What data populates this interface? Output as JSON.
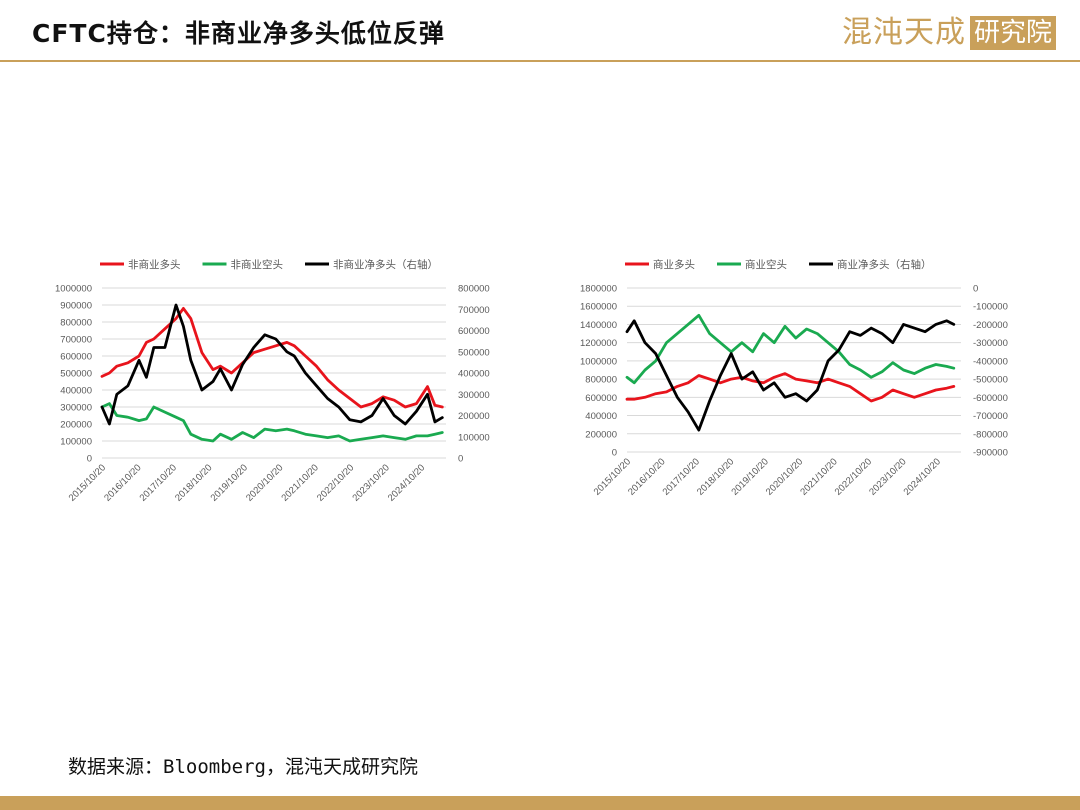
{
  "header": {
    "title": "CFTC持仓：非商业净多头低位反弹",
    "brand_name": "混沌天成",
    "brand_box": "研究院"
  },
  "source_note": "数据来源：Bloomberg，混沌天成研究院",
  "colors": {
    "accent": "#c9a05a",
    "red": "#e8141c",
    "green": "#1aaa50",
    "black": "#000000"
  },
  "chart_data": [
    {
      "type": "line",
      "legend_position": "top",
      "grid": true,
      "x_tick_labels": [
        "2015/10/20",
        "2016/10/20",
        "2017/10/20",
        "2018/10/20",
        "2019/10/20",
        "2020/10/20",
        "2021/10/20",
        "2022/10/20",
        "2023/10/20",
        "2024/10/20"
      ],
      "ylim_left": [
        0,
        1000000
      ],
      "ylim_right": [
        0,
        800000
      ],
      "y_ticks_left": [
        "1000000",
        "900000",
        "800000",
        "700000",
        "600000",
        "500000",
        "400000",
        "300000",
        "200000",
        "100000",
        "0"
      ],
      "y_ticks_right": [
        "800000",
        "700000",
        "600000",
        "500000",
        "400000",
        "300000",
        "200000",
        "100000",
        "0"
      ],
      "series": [
        {
          "name": "非商业多头",
          "axis": "left",
          "color": "#e8141c",
          "x": [
            2015.8,
            2016.0,
            2016.2,
            2016.5,
            2016.8,
            2017.0,
            2017.2,
            2017.5,
            2017.8,
            2018.0,
            2018.2,
            2018.5,
            2018.8,
            2019.0,
            2019.3,
            2019.6,
            2019.9,
            2020.2,
            2020.5,
            2020.8,
            2021.0,
            2021.3,
            2021.6,
            2021.9,
            2022.2,
            2022.5,
            2022.8,
            2023.1,
            2023.4,
            2023.7,
            2024.0,
            2024.3,
            2024.6,
            2024.8,
            2025.0
          ],
          "values": [
            480000,
            500000,
            540000,
            560000,
            600000,
            680000,
            700000,
            760000,
            820000,
            880000,
            820000,
            620000,
            520000,
            540000,
            500000,
            560000,
            620000,
            640000,
            660000,
            680000,
            660000,
            600000,
            540000,
            460000,
            400000,
            350000,
            300000,
            320000,
            360000,
            340000,
            300000,
            320000,
            420000,
            310000,
            300000
          ]
        },
        {
          "name": "非商业空头",
          "axis": "left",
          "color": "#1aaa50",
          "x": [
            2015.8,
            2016.0,
            2016.2,
            2016.5,
            2016.8,
            2017.0,
            2017.2,
            2017.5,
            2017.8,
            2018.0,
            2018.2,
            2018.5,
            2018.8,
            2019.0,
            2019.3,
            2019.6,
            2019.9,
            2020.2,
            2020.5,
            2020.8,
            2021.0,
            2021.3,
            2021.6,
            2021.9,
            2022.2,
            2022.5,
            2022.8,
            2023.1,
            2023.4,
            2023.7,
            2024.0,
            2024.3,
            2024.6,
            2024.8,
            2025.0
          ],
          "values": [
            300000,
            320000,
            250000,
            240000,
            220000,
            230000,
            300000,
            270000,
            240000,
            220000,
            140000,
            110000,
            100000,
            140000,
            110000,
            150000,
            120000,
            170000,
            160000,
            170000,
            160000,
            140000,
            130000,
            120000,
            130000,
            100000,
            110000,
            120000,
            130000,
            120000,
            110000,
            130000,
            130000,
            140000,
            150000
          ]
        },
        {
          "name": "非商业净多头（右轴）",
          "axis": "right",
          "color": "#000000",
          "x": [
            2015.8,
            2016.0,
            2016.2,
            2016.5,
            2016.8,
            2017.0,
            2017.2,
            2017.5,
            2017.8,
            2018.0,
            2018.2,
            2018.5,
            2018.8,
            2019.0,
            2019.3,
            2019.6,
            2019.9,
            2020.2,
            2020.5,
            2020.8,
            2021.0,
            2021.3,
            2021.6,
            2021.9,
            2022.2,
            2022.5,
            2022.8,
            2023.1,
            2023.4,
            2023.7,
            2024.0,
            2024.3,
            2024.6,
            2024.8,
            2025.0
          ],
          "values": [
            240000,
            160000,
            300000,
            340000,
            460000,
            380000,
            520000,
            520000,
            720000,
            620000,
            460000,
            320000,
            360000,
            420000,
            320000,
            440000,
            520000,
            580000,
            560000,
            500000,
            480000,
            400000,
            340000,
            280000,
            240000,
            180000,
            170000,
            200000,
            280000,
            200000,
            160000,
            220000,
            300000,
            170000,
            190000
          ]
        }
      ]
    },
    {
      "type": "line",
      "legend_position": "top",
      "grid": true,
      "x_tick_labels": [
        "2015/10/20",
        "2016/10/20",
        "2017/10/20",
        "2018/10/20",
        "2019/10/20",
        "2020/10/20",
        "2021/10/20",
        "2022/10/20",
        "2023/10/20",
        "2024/10/20"
      ],
      "ylim_left": [
        0,
        1800000
      ],
      "ylim_right": [
        -900000,
        0
      ],
      "y_ticks_left": [
        "1800000",
        "1600000",
        "1400000",
        "1200000",
        "1000000",
        "800000",
        "600000",
        "400000",
        "200000",
        "0"
      ],
      "y_ticks_right": [
        "0",
        "-100000",
        "-200000",
        "-300000",
        "-400000",
        "-500000",
        "-600000",
        "-700000",
        "-800000",
        "-900000"
      ],
      "series": [
        {
          "name": "商业多头",
          "axis": "left",
          "color": "#e8141c",
          "x": [
            2015.8,
            2016.0,
            2016.3,
            2016.6,
            2016.9,
            2017.2,
            2017.5,
            2017.8,
            2018.1,
            2018.4,
            2018.7,
            2019.0,
            2019.3,
            2019.6,
            2019.9,
            2020.2,
            2020.5,
            2020.8,
            2021.1,
            2021.4,
            2021.7,
            2022.0,
            2022.3,
            2022.6,
            2022.9,
            2023.2,
            2023.5,
            2023.8,
            2024.1,
            2024.4,
            2024.7,
            2024.9
          ],
          "values": [
            580000,
            580000,
            600000,
            640000,
            660000,
            720000,
            760000,
            840000,
            800000,
            760000,
            800000,
            820000,
            780000,
            760000,
            820000,
            860000,
            800000,
            780000,
            760000,
            800000,
            760000,
            720000,
            640000,
            560000,
            600000,
            680000,
            640000,
            600000,
            640000,
            680000,
            700000,
            720000
          ]
        },
        {
          "name": "商业空头",
          "axis": "left",
          "color": "#1aaa50",
          "x": [
            2015.8,
            2016.0,
            2016.3,
            2016.6,
            2016.9,
            2017.2,
            2017.5,
            2017.8,
            2018.1,
            2018.4,
            2018.7,
            2019.0,
            2019.3,
            2019.6,
            2019.9,
            2020.2,
            2020.5,
            2020.8,
            2021.1,
            2021.4,
            2021.7,
            2022.0,
            2022.3,
            2022.6,
            2022.9,
            2023.2,
            2023.5,
            2023.8,
            2024.1,
            2024.4,
            2024.7,
            2024.9
          ],
          "values": [
            820000,
            760000,
            900000,
            1000000,
            1200000,
            1300000,
            1400000,
            1500000,
            1300000,
            1200000,
            1100000,
            1200000,
            1100000,
            1300000,
            1200000,
            1380000,
            1250000,
            1350000,
            1300000,
            1200000,
            1100000,
            960000,
            900000,
            820000,
            880000,
            980000,
            900000,
            860000,
            920000,
            960000,
            940000,
            920000
          ]
        },
        {
          "name": "商业净多头（右轴）",
          "axis": "right",
          "color": "#000000",
          "x": [
            2015.8,
            2016.0,
            2016.3,
            2016.6,
            2016.9,
            2017.2,
            2017.5,
            2017.8,
            2018.1,
            2018.4,
            2018.7,
            2019.0,
            2019.3,
            2019.6,
            2019.9,
            2020.2,
            2020.5,
            2020.8,
            2021.1,
            2021.4,
            2021.7,
            2022.0,
            2022.3,
            2022.6,
            2022.9,
            2023.2,
            2023.5,
            2023.8,
            2024.1,
            2024.4,
            2024.7,
            2024.9
          ],
          "values": [
            -240000,
            -180000,
            -300000,
            -360000,
            -480000,
            -600000,
            -680000,
            -780000,
            -620000,
            -480000,
            -360000,
            -500000,
            -460000,
            -560000,
            -520000,
            -600000,
            -580000,
            -620000,
            -560000,
            -400000,
            -340000,
            -240000,
            -260000,
            -220000,
            -250000,
            -300000,
            -200000,
            -220000,
            -240000,
            -200000,
            -180000,
            -200000
          ]
        }
      ]
    }
  ]
}
